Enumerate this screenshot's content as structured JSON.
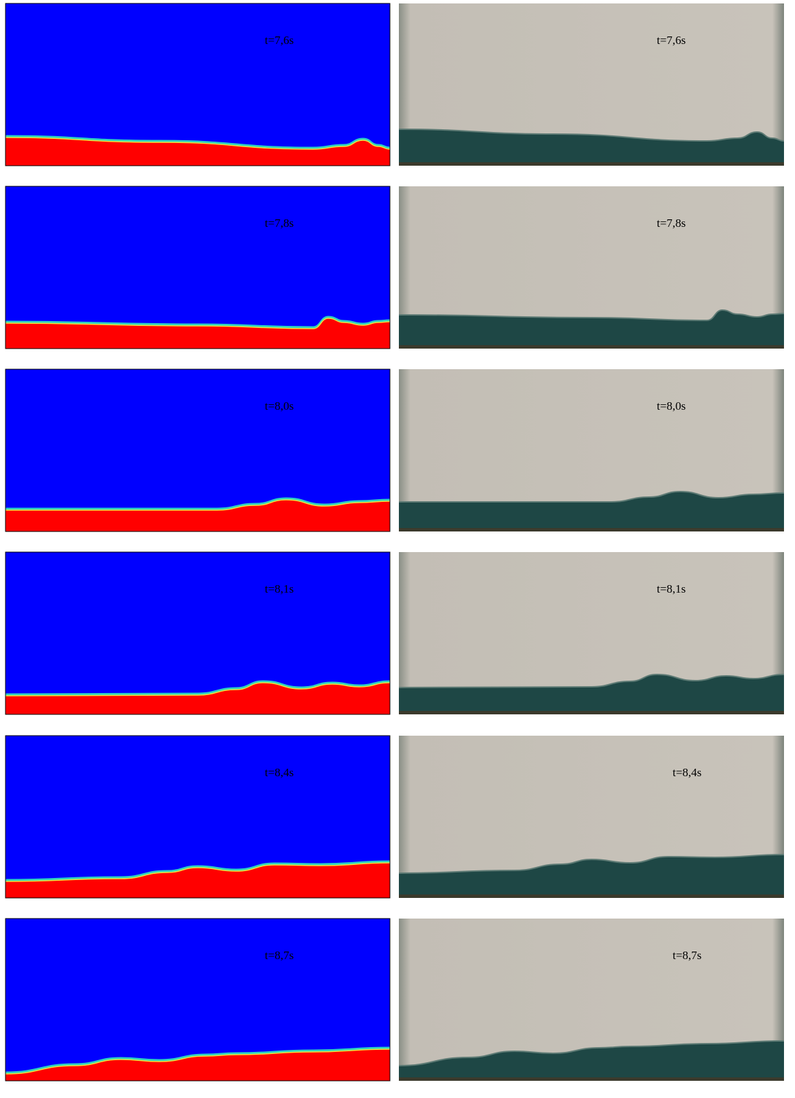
{
  "panels": [
    {
      "simulation": {
        "label": "t=7,6s"
      },
      "experiment": {
        "label": "t=7,6s"
      }
    },
    {
      "simulation": {
        "label": "t=7,8s"
      },
      "experiment": {
        "label": "t=7,8s"
      }
    },
    {
      "simulation": {
        "label": "t=8,0s"
      },
      "experiment": {
        "label": "t=8,0s"
      }
    },
    {
      "simulation": {
        "label": "t=8,1s"
      },
      "experiment": {
        "label": "t=8,1s"
      }
    },
    {
      "simulation": {
        "label": "t=8,4s"
      },
      "experiment": {
        "label": "t=8,4s"
      }
    },
    {
      "simulation": {
        "label": "t=8,7s"
      },
      "experiment": {
        "label": "t=8,7s"
      }
    }
  ]
}
